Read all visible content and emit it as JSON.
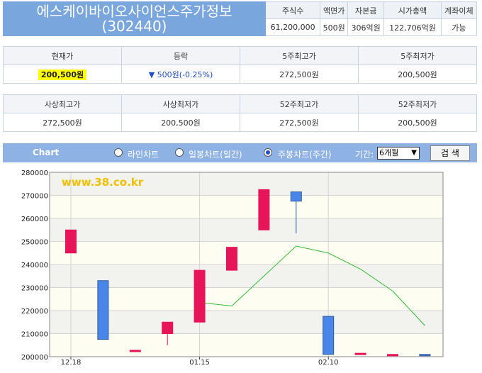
{
  "header": {
    "company_name": "에스케이바이오사이언스주가정보",
    "code": "(302440)",
    "columns": [
      "주식수",
      "액면가",
      "자본금",
      "시가총액",
      "계좌이체"
    ],
    "values": [
      "61,200,000",
      "500원",
      "306억원",
      "122,706억원",
      "가능"
    ]
  },
  "price_table": {
    "headers": [
      "현재가",
      "등락",
      "5주최고가",
      "5주최저가"
    ],
    "current": "200,500원",
    "change": "▼ 500원(-0.25%)",
    "high5": "272,500원",
    "low5": "200,500원"
  },
  "hist_table": {
    "headers": [
      "사상최고가",
      "사상최저가",
      "52주최고가",
      "52주최저가"
    ],
    "values": [
      "272,500원",
      "200,500원",
      "272,500원",
      "200,500원"
    ]
  },
  "chart_bar": {
    "title": "Chart",
    "radio_line": "라인차트",
    "radio_daily": "일봉차트(일간)",
    "radio_weekly": "주봉차트(주간)",
    "period_label": "기간:",
    "period_value": "6개월",
    "search": "검 색"
  },
  "colors": {
    "up": "#e8145a",
    "down": "#4a86e8",
    "ma": "#2fbf2f",
    "header": "#7aa6de",
    "bar": "#8fb2e4"
  },
  "chart_data": {
    "type": "candlestick",
    "watermark": "www.38.co.kr",
    "ylim": [
      200000,
      280000
    ],
    "yticks": [
      200000,
      210000,
      220000,
      230000,
      240000,
      250000,
      260000,
      270000,
      280000
    ],
    "xtick_labels": [
      {
        "index": 0,
        "label": "12.18"
      },
      {
        "index": 4,
        "label": "01.15"
      },
      {
        "index": 8,
        "label": "02.10"
      }
    ],
    "candles": [
      {
        "open": 245000,
        "close": 255000,
        "high": 255000,
        "low": 245000
      },
      {
        "open": 233000,
        "close": 207500,
        "high": 233000,
        "low": 207500
      },
      {
        "open": 202500,
        "close": 202800,
        "high": 202800,
        "low": 202500
      },
      {
        "open": 210000,
        "close": 215000,
        "high": 215000,
        "low": 205000
      },
      {
        "open": 215000,
        "close": 237500,
        "high": 237500,
        "low": 215000
      },
      {
        "open": 237500,
        "close": 247500,
        "high": 247500,
        "low": 237500
      },
      {
        "open": 255000,
        "close": 272500,
        "high": 272500,
        "low": 255000
      },
      {
        "open": 271500,
        "close": 267500,
        "high": 271500,
        "low": 253500
      },
      {
        "open": 217500,
        "close": 201000,
        "high": 217500,
        "low": 201000
      },
      {
        "open": 201000,
        "close": 201500,
        "high": 201500,
        "low": 201000
      },
      {
        "open": 200800,
        "close": 201000,
        "high": 201000,
        "low": 200800
      },
      {
        "open": 201000,
        "close": 200500,
        "high": 201000,
        "low": 200500
      }
    ],
    "moving_average": [
      {
        "index": 4,
        "value": 223500
      },
      {
        "index": 5,
        "value": 222000
      },
      {
        "index": 6,
        "value": 235000
      },
      {
        "index": 7,
        "value": 248000
      },
      {
        "index": 8,
        "value": 245000
      },
      {
        "index": 9,
        "value": 238000
      },
      {
        "index": 10,
        "value": 228500
      },
      {
        "index": 11,
        "value": 213500
      }
    ]
  }
}
